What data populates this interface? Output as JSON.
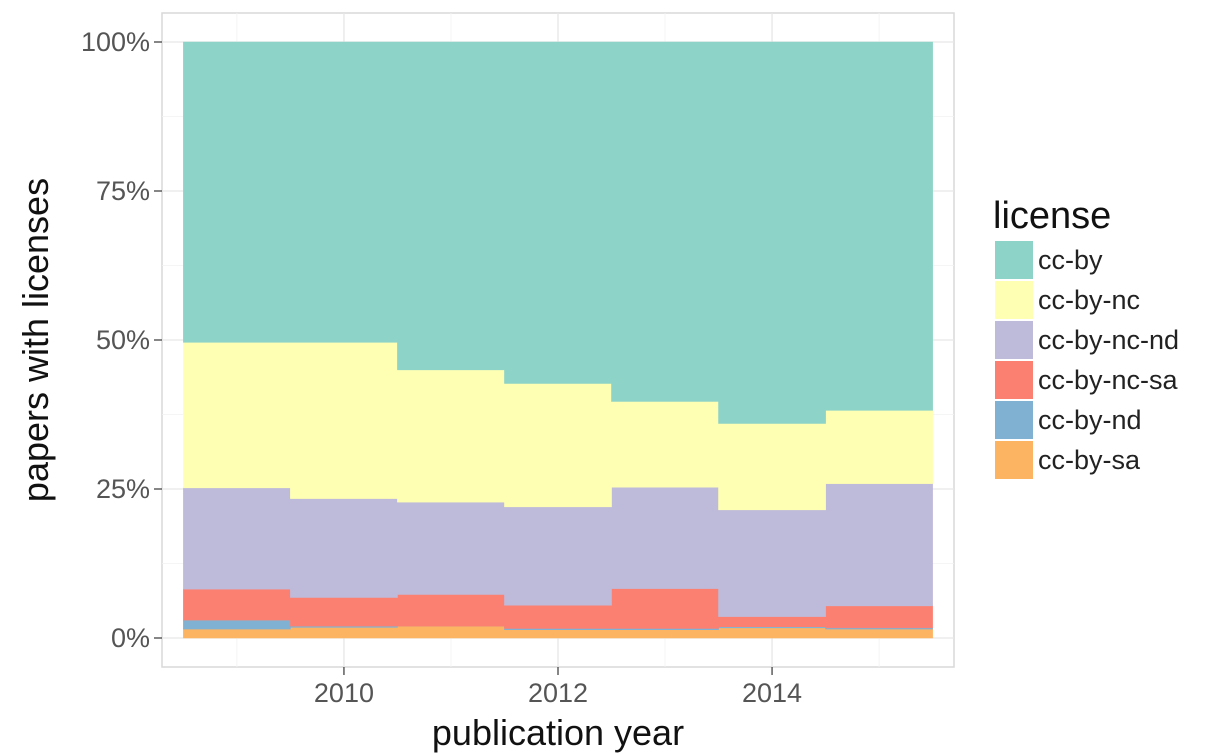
{
  "chart_data": {
    "type": "area",
    "stacked": true,
    "step": true,
    "x": [
      2009,
      2010,
      2011,
      2012,
      2013,
      2014,
      2015
    ],
    "xlim": [
      2008.3,
      2015.7
    ],
    "x_ticks": [
      2010,
      2012,
      2014
    ],
    "x_tick_labels": [
      "2010",
      "2012",
      "2014"
    ],
    "ylim": [
      0,
      1
    ],
    "y_ticks": [
      0,
      0.25,
      0.5,
      0.75,
      1
    ],
    "y_tick_labels": [
      "0%",
      "25%",
      "50%",
      "75%",
      "100%"
    ],
    "xlabel": "publication year",
    "ylabel": "papers with licenses",
    "grid": true,
    "legend": {
      "title": "license",
      "position": "right"
    },
    "series": [
      {
        "name": "cc-by-sa",
        "color": "#fdb462",
        "values": [
          0.015,
          0.018,
          0.02,
          0.014,
          0.014,
          0.017,
          0.015
        ]
      },
      {
        "name": "cc-by-nd",
        "color": "#80b1d3",
        "values": [
          0.015,
          0.002,
          0.0,
          0.002,
          0.002,
          0.002,
          0.002
        ]
      },
      {
        "name": "cc-by-nc-sa",
        "color": "#fb8072",
        "values": [
          0.052,
          0.048,
          0.053,
          0.039,
          0.067,
          0.017,
          0.037
        ]
      },
      {
        "name": "cc-by-nc-nd",
        "color": "#bebada",
        "values": [
          0.17,
          0.166,
          0.155,
          0.165,
          0.17,
          0.179,
          0.205
        ]
      },
      {
        "name": "cc-by-nc",
        "color": "#ffffb3",
        "values": [
          0.244,
          0.262,
          0.222,
          0.207,
          0.144,
          0.145,
          0.123
        ]
      },
      {
        "name": "cc-by",
        "color": "#8dd3c7",
        "values": [
          0.504,
          0.504,
          0.55,
          0.573,
          0.603,
          0.64,
          0.618
        ]
      }
    ]
  }
}
